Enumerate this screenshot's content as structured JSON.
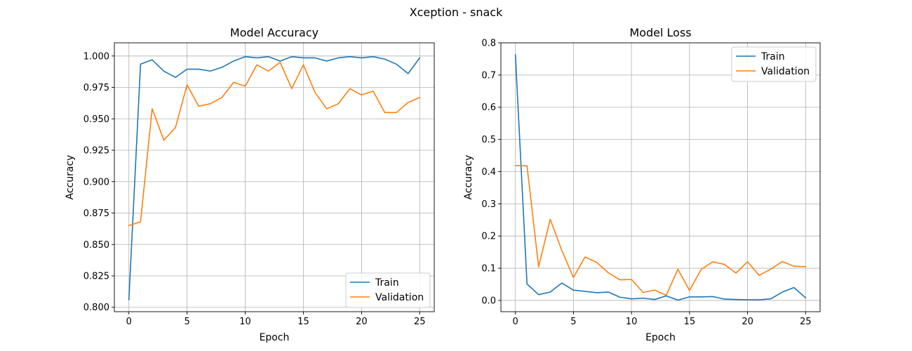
{
  "figure": {
    "suptitle": "Xception - snack"
  },
  "chart_data": [
    {
      "type": "line",
      "title": "Model Accuracy",
      "xlabel": "Epoch",
      "ylabel": "Accuracy",
      "xlim": [
        -1.25,
        26.25
      ],
      "ylim": [
        0.7965,
        1.0105
      ],
      "xticks": [
        0,
        5,
        10,
        15,
        20,
        25
      ],
      "yticks": [
        0.8,
        0.825,
        0.85,
        0.875,
        0.9,
        0.925,
        0.95,
        0.975,
        1.0
      ],
      "ytick_labels": [
        "0.800",
        "0.825",
        "0.850",
        "0.875",
        "0.900",
        "0.925",
        "0.950",
        "0.975",
        "1.000"
      ],
      "grid": true,
      "legend_position": "lower-right",
      "x": [
        0,
        1,
        2,
        3,
        4,
        5,
        6,
        7,
        8,
        9,
        10,
        11,
        12,
        13,
        14,
        15,
        16,
        17,
        18,
        19,
        20,
        21,
        22,
        23,
        24,
        25
      ],
      "series": [
        {
          "name": "Train",
          "color": "#1f77b4",
          "values": [
            0.806,
            0.9935,
            0.997,
            0.988,
            0.983,
            0.9895,
            0.9895,
            0.988,
            0.991,
            0.996,
            0.9995,
            0.9985,
            0.9995,
            0.996,
            0.9995,
            0.9985,
            0.9985,
            0.996,
            0.9985,
            0.9995,
            0.9985,
            0.9995,
            0.9975,
            0.9935,
            0.986,
            0.9985
          ]
        },
        {
          "name": "Validation",
          "color": "#ff7f0e",
          "values": [
            0.865,
            0.868,
            0.958,
            0.933,
            0.943,
            0.977,
            0.96,
            0.962,
            0.967,
            0.979,
            0.976,
            0.993,
            0.988,
            0.995,
            0.974,
            0.993,
            0.971,
            0.958,
            0.962,
            0.974,
            0.969,
            0.972,
            0.955,
            0.955,
            0.963,
            0.967
          ]
        }
      ]
    },
    {
      "type": "line",
      "title": "Model Loss",
      "xlabel": "Epoch",
      "ylabel": "Accuracy",
      "xlim": [
        -1.25,
        26.25
      ],
      "ylim": [
        -0.035,
        0.8
      ],
      "xticks": [
        0,
        5,
        10,
        15,
        20,
        25
      ],
      "yticks": [
        0.0,
        0.1,
        0.2,
        0.3,
        0.4,
        0.5,
        0.6,
        0.7,
        0.8
      ],
      "ytick_labels": [
        "0.0",
        "0.1",
        "0.2",
        "0.3",
        "0.4",
        "0.5",
        "0.6",
        "0.7",
        "0.8"
      ],
      "grid": true,
      "legend_position": "upper-right",
      "x": [
        0,
        1,
        2,
        3,
        4,
        5,
        6,
        7,
        8,
        9,
        10,
        11,
        12,
        13,
        14,
        15,
        16,
        17,
        18,
        19,
        20,
        21,
        22,
        23,
        24,
        25
      ],
      "series": [
        {
          "name": "Train",
          "color": "#1f77b4",
          "values": [
            0.763,
            0.051,
            0.018,
            0.026,
            0.054,
            0.032,
            0.028,
            0.024,
            0.026,
            0.01,
            0.005,
            0.007,
            0.003,
            0.014,
            0.001,
            0.011,
            0.011,
            0.012,
            0.004,
            0.003,
            0.002,
            0.002,
            0.005,
            0.026,
            0.04,
            0.008
          ]
        },
        {
          "name": "Validation",
          "color": "#ff7f0e",
          "values": [
            0.419,
            0.418,
            0.104,
            0.252,
            0.155,
            0.071,
            0.135,
            0.118,
            0.086,
            0.064,
            0.065,
            0.025,
            0.032,
            0.016,
            0.097,
            0.031,
            0.096,
            0.12,
            0.112,
            0.085,
            0.12,
            0.078,
            0.097,
            0.121,
            0.106,
            0.105
          ]
        }
      ]
    }
  ]
}
